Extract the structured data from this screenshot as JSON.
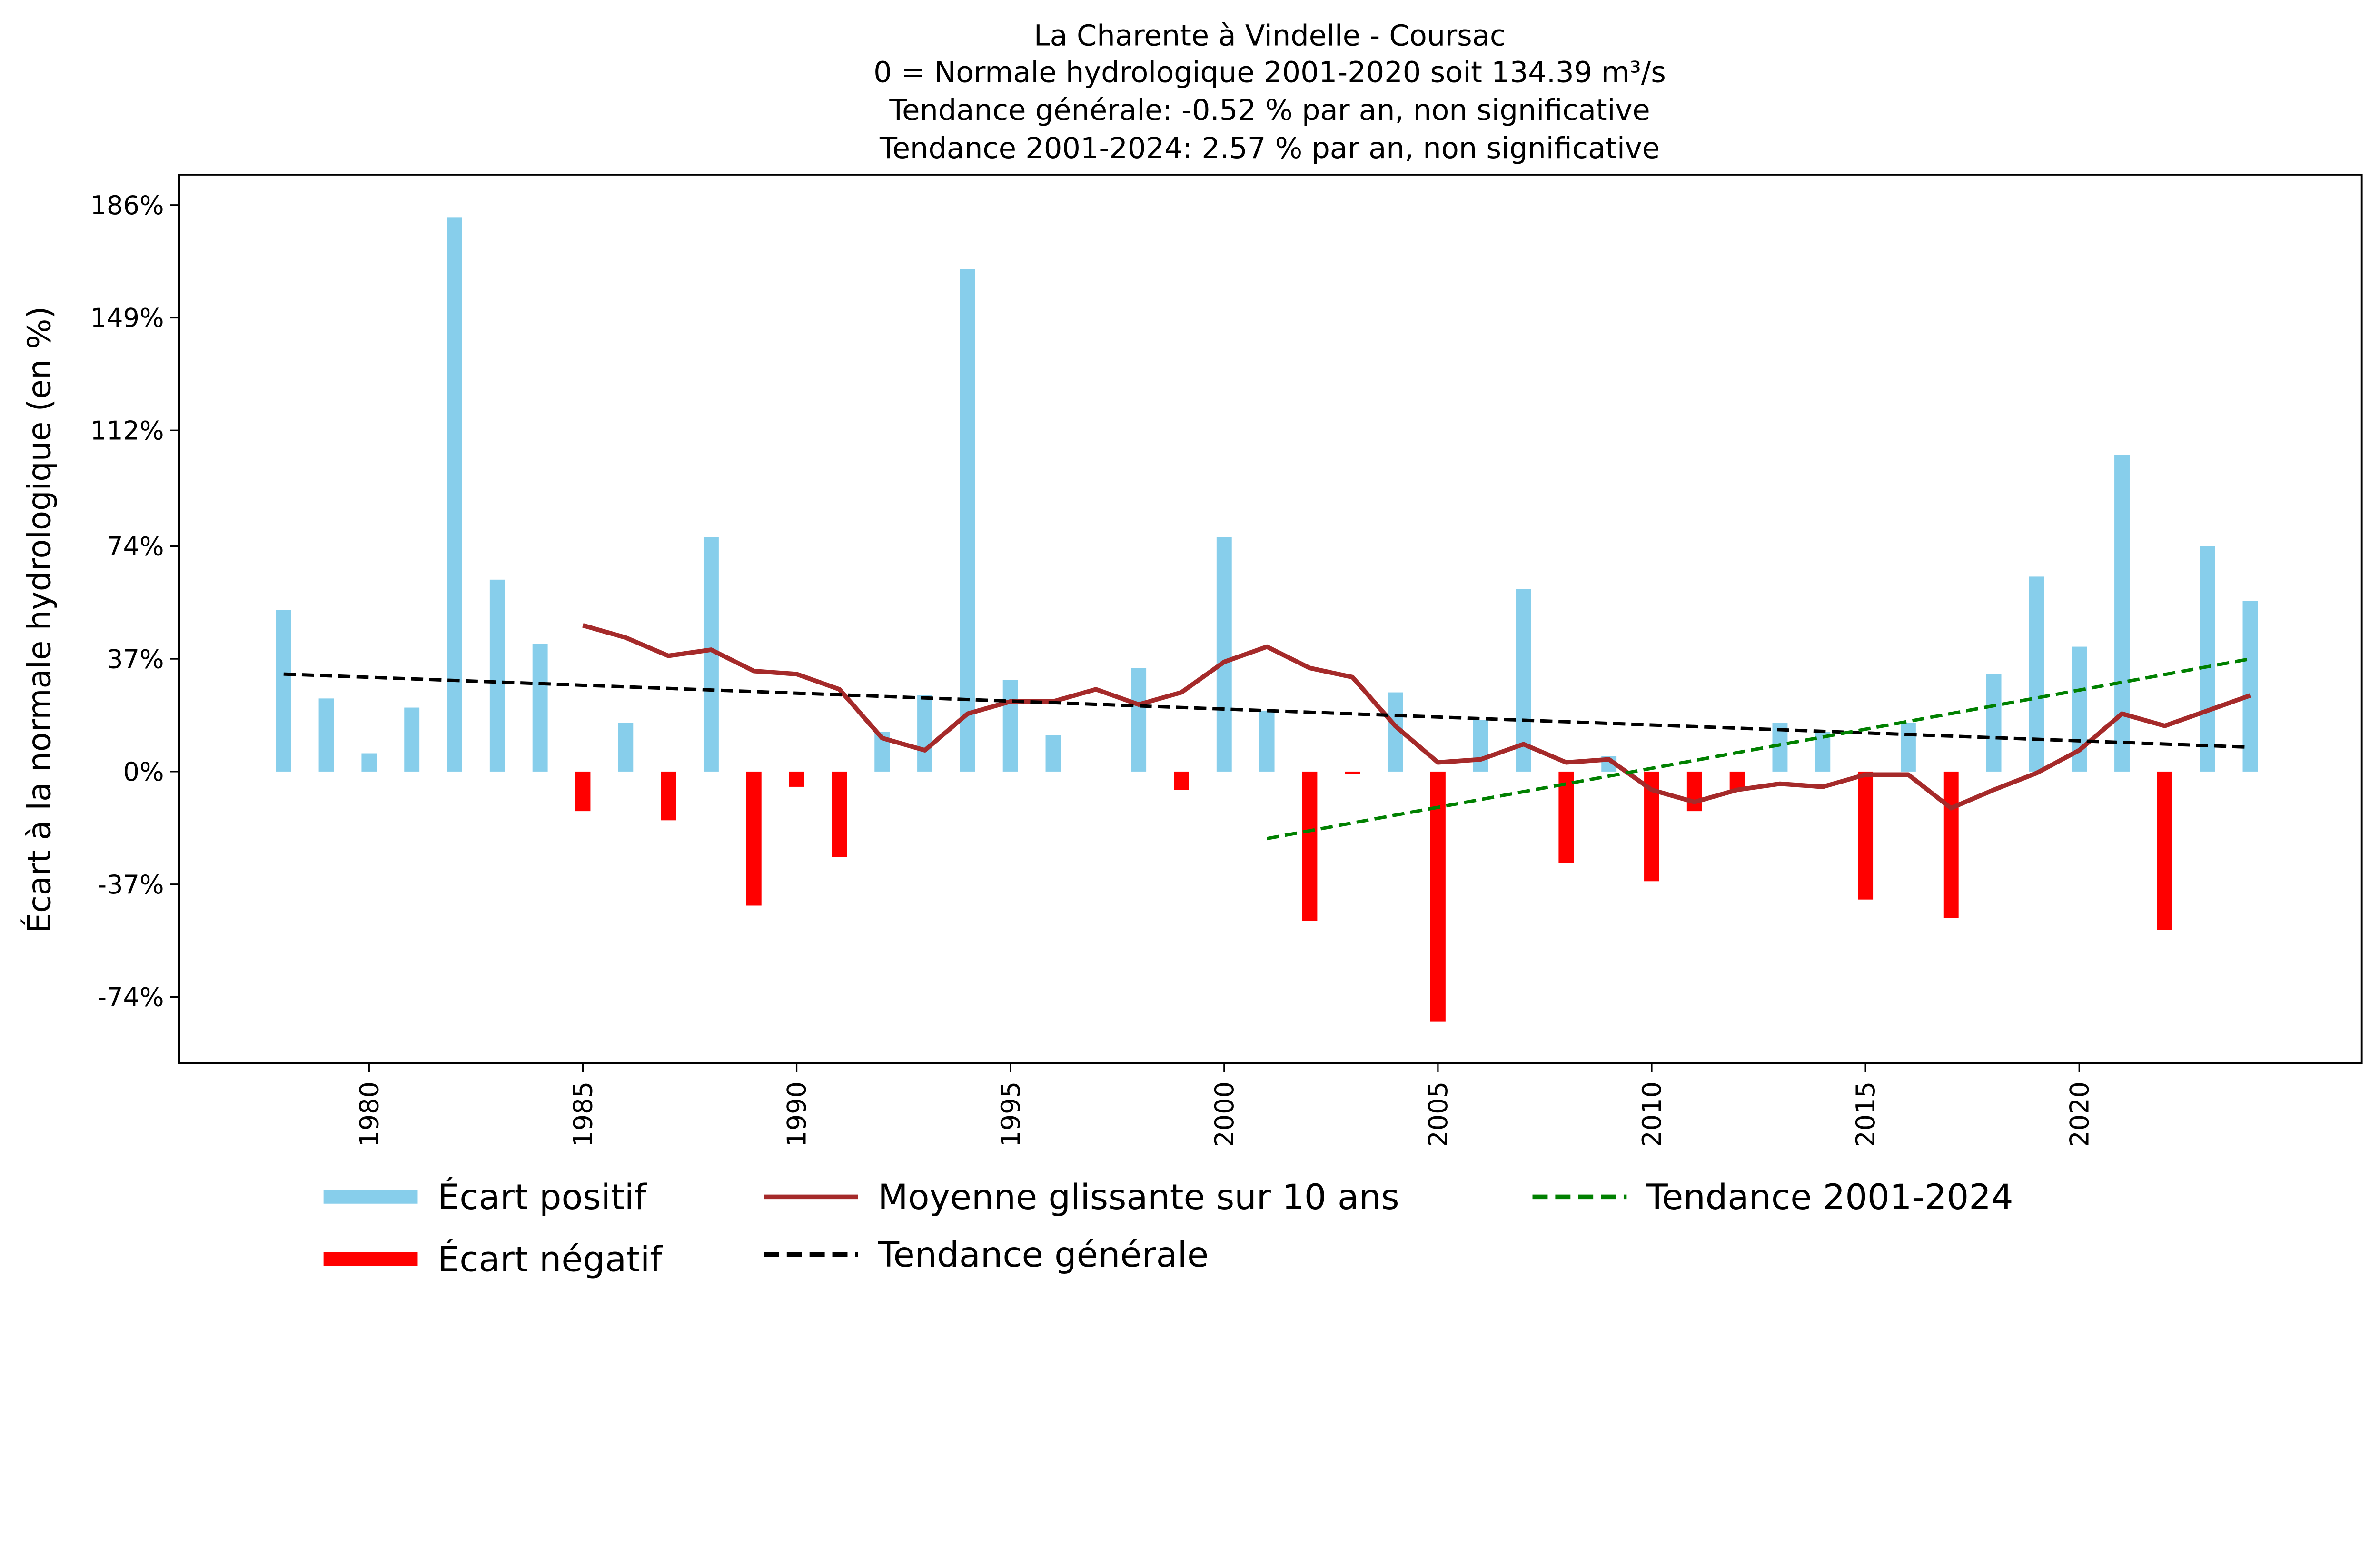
{
  "chart_data": {
    "type": "bar",
    "title_lines": [
      "La Charente à Vindelle - Coursac",
      "0 = Normale hydrologique 2001-2020 soit 134.39 m³/s",
      "Tendance générale: -0.52 % par an, non significative",
      "Tendance 2001-2024: 2.57 % par an, non significative"
    ],
    "xlabel": "",
    "ylabel": "Écart à la normale hydrologique (en %)",
    "ylim": [
      -99,
      194
    ],
    "xlim": [
      1977,
      2025.5
    ],
    "yticks": [
      {
        "value": 186,
        "label": "186%"
      },
      {
        "value": 149,
        "label": "149%"
      },
      {
        "value": 112,
        "label": "112%"
      },
      {
        "value": 74,
        "label": "74%"
      },
      {
        "value": 37,
        "label": "37%"
      },
      {
        "value": 0,
        "label": "0%"
      },
      {
        "value": -37,
        "label": "-37%"
      },
      {
        "value": -74,
        "label": "-74%"
      }
    ],
    "xticks": [
      1980,
      1985,
      1990,
      1995,
      2000,
      2005,
      2010,
      2015,
      2020
    ],
    "grid": false,
    "colors": {
      "positive": "#87CEEB",
      "negative": "#FF0000",
      "moving_average": "#A52A2A",
      "trend_general": "#000000",
      "trend_recent": "#008000"
    },
    "years": [
      1978,
      1979,
      1980,
      1981,
      1982,
      1983,
      1984,
      1985,
      1986,
      1987,
      1988,
      1989,
      1990,
      1991,
      1992,
      1993,
      1994,
      1995,
      1996,
      1997,
      1998,
      1999,
      2000,
      2001,
      2002,
      2003,
      2004,
      2005,
      2006,
      2007,
      2008,
      2009,
      2010,
      2011,
      2012,
      2013,
      2014,
      2015,
      2016,
      2017,
      2018,
      2019,
      2020,
      2021,
      2022,
      2023,
      2024
    ],
    "values": [
      53,
      24,
      6,
      21,
      182,
      63,
      42,
      -13,
      16,
      -16,
      77,
      -44,
      -5,
      -28,
      13,
      25,
      165,
      30,
      12,
      0,
      34,
      -6,
      77,
      20,
      -49,
      -0.5,
      26,
      -82,
      17,
      60,
      -30,
      5,
      -36,
      -13,
      -6,
      16,
      13,
      -42,
      16,
      -48,
      32,
      64,
      41,
      104,
      -52,
      74,
      56
    ],
    "moving_average": {
      "name": "Moyenne glissante sur 10 ans",
      "years": [
        1985,
        1986,
        1987,
        1988,
        1989,
        1990,
        1991,
        1992,
        1993,
        1994,
        1995,
        1996,
        1997,
        1998,
        1999,
        2000,
        2001,
        2002,
        2003,
        2004,
        2005,
        2006,
        2007,
        2008,
        2009,
        2010,
        2011,
        2012,
        2013,
        2014,
        2015,
        2016,
        2017,
        2018,
        2019,
        2020,
        2021,
        2022,
        2023,
        2024
      ],
      "values": [
        48,
        44,
        38,
        40,
        33,
        32,
        27,
        11,
        7,
        19,
        23,
        23,
        27,
        22,
        26,
        36,
        41,
        34,
        31,
        15,
        3,
        4,
        9,
        3,
        4,
        -6,
        -10,
        -6,
        -4,
        -5,
        -1,
        -1,
        -12,
        -6,
        -0.5,
        7,
        19,
        15,
        20,
        25
      ]
    },
    "trend_general": {
      "name": "Tendance générale",
      "x": [
        1978,
        2024
      ],
      "y": [
        32,
        8
      ]
    },
    "trend_recent": {
      "name": "Tendance 2001-2024",
      "x": [
        2001,
        2024
      ],
      "y": [
        -22,
        37
      ]
    },
    "legend": {
      "placement": "bottom",
      "entries": [
        "Écart positif",
        "Écart négatif",
        "Moyenne glissante sur 10 ans",
        "Tendance générale",
        "Tendance 2001-2024"
      ]
    }
  }
}
